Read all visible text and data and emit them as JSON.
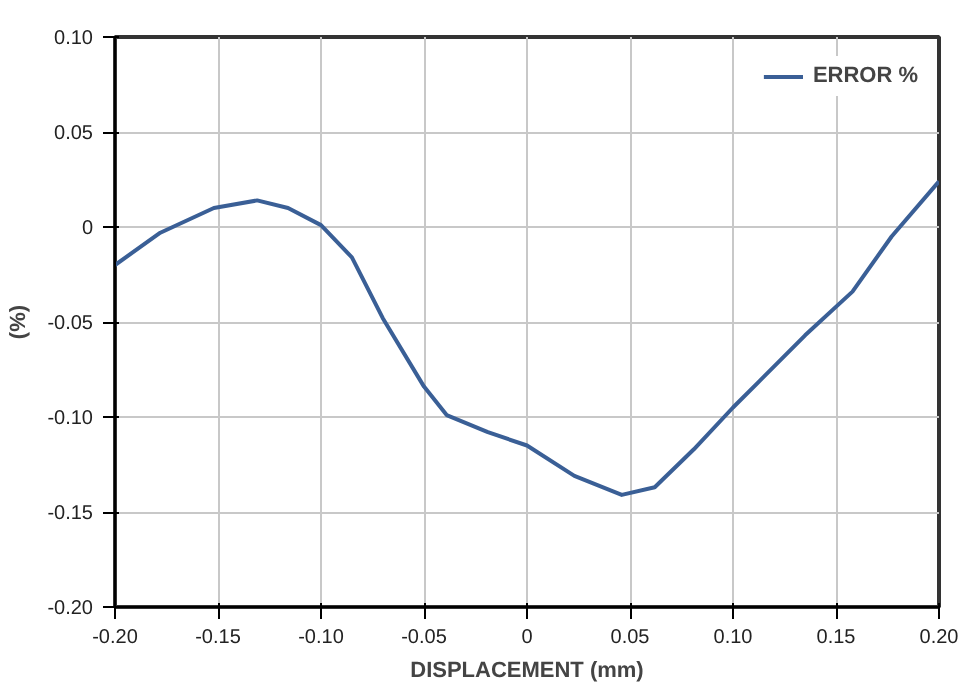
{
  "chart_data": {
    "type": "line",
    "xlabel": "DISPLACEMENT (mm)",
    "ylabel": "(%)",
    "x": [
      -0.2,
      -0.178,
      -0.152,
      -0.131,
      -0.116,
      -0.1,
      -0.085,
      -0.07,
      -0.05,
      -0.039,
      -0.019,
      0.0,
      0.023,
      0.046,
      0.062,
      0.081,
      0.1,
      0.112,
      0.135,
      0.158,
      0.177,
      0.2
    ],
    "series": [
      {
        "name": "ERROR %",
        "color": "#3a5f96",
        "values": [
          -0.02,
          -0.003,
          0.01,
          0.014,
          0.01,
          0.001,
          -0.016,
          -0.048,
          -0.084,
          -0.099,
          -0.108,
          -0.115,
          -0.131,
          -0.141,
          -0.137,
          -0.117,
          -0.095,
          -0.082,
          -0.057,
          -0.034,
          -0.005,
          0.024
        ]
      }
    ],
    "xlim": [
      -0.2,
      0.2
    ],
    "ylim": [
      -0.2,
      0.1
    ],
    "xticks": [
      {
        "value": -0.2,
        "label": "-0.20"
      },
      {
        "value": -0.15,
        "label": "-0.15"
      },
      {
        "value": -0.1,
        "label": "-0.10"
      },
      {
        "value": -0.05,
        "label": "-0.05"
      },
      0,
      {
        "value": 0.05,
        "label": "0.05"
      },
      {
        "value": 0.1,
        "label": "0.10"
      },
      {
        "value": 0.15,
        "label": "0.15"
      },
      {
        "value": 0.2,
        "label": "0.20"
      }
    ],
    "yticks": [
      {
        "value": -0.2,
        "label": "-0.20"
      },
      {
        "value": -0.15,
        "label": "-0.15"
      },
      {
        "value": -0.1,
        "label": "-0.10"
      },
      {
        "value": -0.05,
        "label": "-0.05"
      },
      0,
      {
        "value": 0.05,
        "label": "0.05"
      },
      {
        "value": 0.1,
        "label": "0.10"
      }
    ],
    "grid": true,
    "legend": "top right",
    "marker": "none",
    "line_style": "solid"
  }
}
